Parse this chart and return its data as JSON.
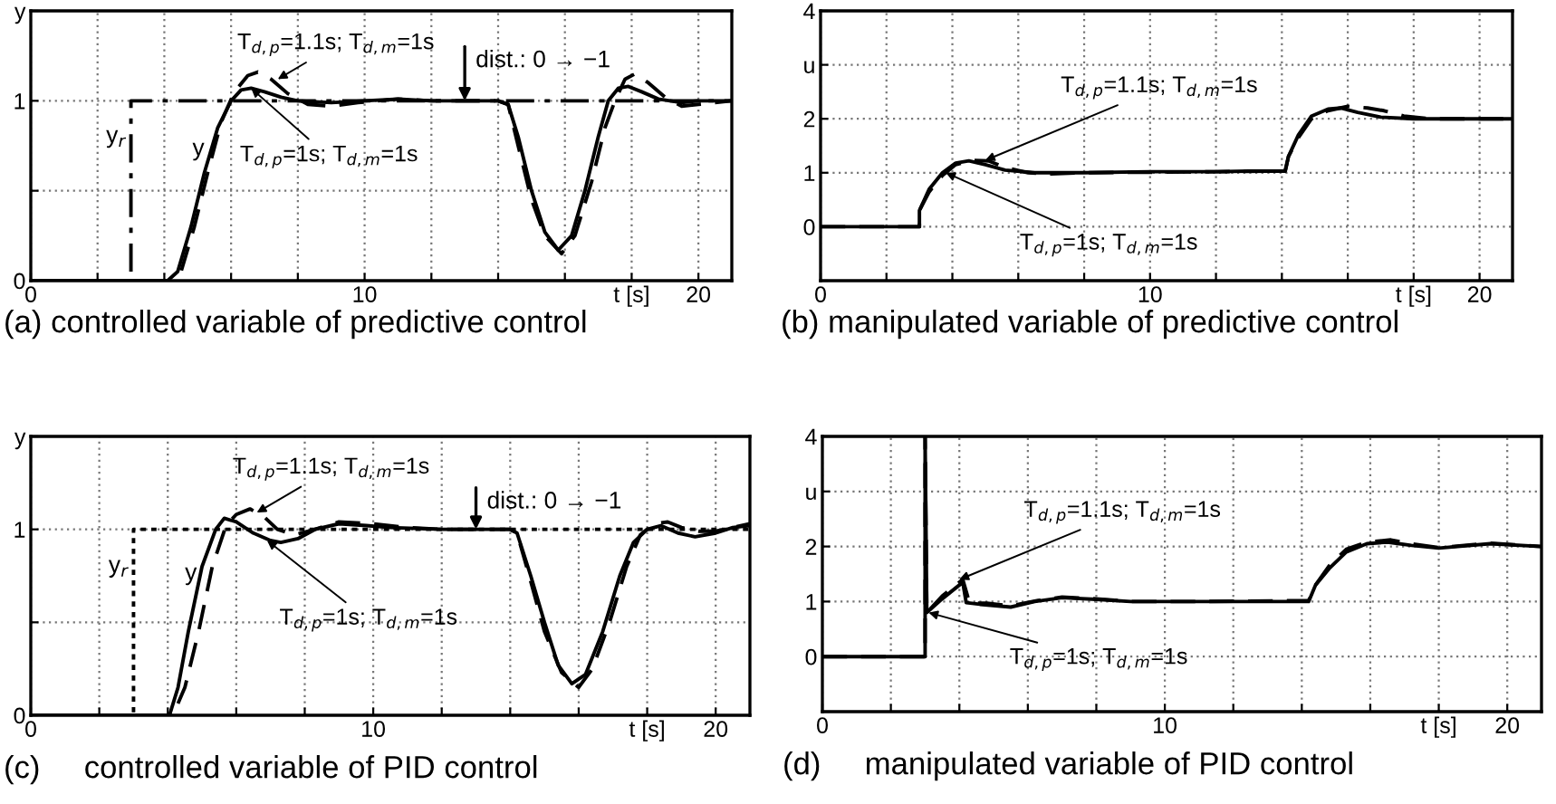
{
  "chart_data": [
    {
      "type": "line",
      "title": "(a) controlled variable of predictive control",
      "xlim": [
        0,
        21
      ],
      "ylim": [
        0,
        1.5
      ],
      "grid": true,
      "xticks": [
        0,
        {
          "value": 2,
          "label": null
        },
        {
          "value": 4,
          "label": null
        },
        {
          "value": 6,
          "label": null
        },
        {
          "value": 8,
          "label": null
        },
        10,
        {
          "value": 12,
          "label": null
        },
        {
          "value": 14,
          "label": null
        },
        {
          "value": 16,
          "label": null
        },
        {
          "value": 18,
          "label": "t [s]"
        },
        20
      ],
      "yticks": [
        0,
        {
          "value": 0.5,
          "label": null
        },
        1,
        {
          "value": 1.5,
          "label": "y"
        }
      ],
      "series": [
        {
          "color": "#000000",
          "line_style": "dashdot",
          "x": [
            0,
            3,
            3,
            21
          ],
          "values": [
            0,
            0,
            1,
            1
          ]
        },
        {
          "color": "#000000",
          "line_style": "solid",
          "x": [
            0,
            4.1,
            4.4,
            4.8,
            5.2,
            5.6,
            6.0,
            6.3,
            6.6,
            7.0,
            7.5,
            8,
            9,
            10,
            11,
            12,
            13,
            14,
            14.3,
            14.6,
            15.0,
            15.4,
            15.8,
            16.2,
            16.6,
            17.0,
            17.3,
            17.6,
            17.9,
            18.3,
            18.8,
            19.5,
            20,
            21
          ],
          "values": [
            0,
            0,
            0.05,
            0.3,
            0.6,
            0.85,
            1.0,
            1.06,
            1.07,
            1.05,
            1.02,
            1.0,
            0.99,
            1.0,
            1.01,
            1.0,
            1.0,
            1.0,
            0.98,
            0.8,
            0.5,
            0.27,
            0.17,
            0.25,
            0.5,
            0.8,
            1.0,
            1.07,
            1.08,
            1.05,
            1.01,
            0.99,
            1.0,
            1.0
          ]
        },
        {
          "color": "#000000",
          "line_style": "dashed",
          "x": [
            0,
            4.2,
            4.5,
            4.9,
            5.3,
            5.7,
            6.1,
            6.5,
            6.8,
            7.2,
            7.7,
            8.3,
            9,
            9.8,
            11,
            12,
            14,
            14.3,
            14.6,
            15.0,
            15.4,
            15.9,
            16.3,
            16.8,
            17.2,
            17.5,
            17.8,
            18.1,
            18.5,
            19.0,
            19.5,
            20,
            21
          ],
          "values": [
            0,
            0,
            0.05,
            0.3,
            0.6,
            0.88,
            1.05,
            1.14,
            1.16,
            1.12,
            1.04,
            0.98,
            0.97,
            0.99,
            1.01,
            1.0,
            1.0,
            0.98,
            0.75,
            0.45,
            0.25,
            0.15,
            0.25,
            0.55,
            0.85,
            1.0,
            1.12,
            1.15,
            1.1,
            1.02,
            0.97,
            0.98,
            1.0
          ]
        }
      ],
      "annotations": [
        {
          "text": "T$_{d,p}$=1.1s; T$_{d,m}$=1s",
          "x": 7.4,
          "y": 1.12
        },
        {
          "text": "T$_{d,p}$=1s; T$_{d,m}$=1s",
          "x": 6.6,
          "y": 1.07
        },
        {
          "text": "dist.: 0 → −1",
          "x": 13,
          "y": 1.0
        },
        {
          "text": "y$_{r}$",
          "x": 2.85,
          "y": 0.8
        },
        {
          "text": "y",
          "x": 5.2,
          "y": 0.73
        }
      ]
    },
    {
      "type": "line",
      "title": "(b) manipulated variable of predictive control",
      "xlim": [
        0,
        21
      ],
      "ylim": [
        -1,
        4
      ],
      "grid": true,
      "xticks": [
        0,
        {
          "value": 2,
          "label": null
        },
        {
          "value": 4,
          "label": null
        },
        {
          "value": 6,
          "label": null
        },
        {
          "value": 8,
          "label": null
        },
        10,
        {
          "value": 12,
          "label": null
        },
        {
          "value": 14,
          "label": null
        },
        {
          "value": 16,
          "label": null
        },
        {
          "value": 18,
          "label": "t [s]"
        },
        20
      ],
      "yticks": [
        {
          "value": -1,
          "label": null
        },
        0,
        1,
        2,
        {
          "value": 3,
          "label": "u"
        },
        4
      ],
      "series": [
        {
          "color": "#000000",
          "line_style": "solid",
          "x": [
            0,
            3,
            3,
            3.3,
            3.7,
            4.1,
            4.5,
            5,
            5.6,
            6.5,
            8,
            10,
            12,
            13,
            14.1,
            14.2,
            14.5,
            14.9,
            15.4,
            15.8,
            16.3,
            17,
            18,
            19,
            21
          ],
          "values": [
            0,
            0,
            0.3,
            0.7,
            1.0,
            1.18,
            1.22,
            1.15,
            1.05,
            1.0,
            1.0,
            1.02,
            1.02,
            1.03,
            1.03,
            1.3,
            1.7,
            2.05,
            2.18,
            2.2,
            2.12,
            2.03,
            2.0,
            2.0,
            2.0
          ]
        },
        {
          "color": "#000000",
          "line_style": "dashed",
          "x": [
            0,
            3,
            3,
            3.3,
            3.7,
            4.1,
            4.6,
            5.1,
            5.6,
            6.3,
            7,
            8,
            10,
            12,
            14.1,
            14.2,
            14.5,
            14.9,
            15.4,
            16,
            16.6,
            17.1,
            17.7,
            18.5,
            21
          ],
          "values": [
            0,
            0,
            0.3,
            0.65,
            0.95,
            1.15,
            1.23,
            1.22,
            1.1,
            1.0,
            0.98,
            1.0,
            1.01,
            1.02,
            1.03,
            1.3,
            1.65,
            2.0,
            2.15,
            2.23,
            2.2,
            2.15,
            2.05,
            2.0,
            2.0
          ]
        }
      ],
      "annotations": [
        {
          "text": "T$_{d,p}$=1.1s; T$_{d,m}$=1s",
          "x": 5.0,
          "y": 1.23
        },
        {
          "text": "T$_{d,p}$=1s; T$_{d,m}$=1s",
          "x": 3.8,
          "y": 1.0
        }
      ]
    },
    {
      "type": "line",
      "title": "(c)     controlled variable of PID control",
      "xlim": [
        0,
        21
      ],
      "ylim": [
        0,
        1.5
      ],
      "grid": true,
      "xticks": [
        0,
        {
          "value": 2,
          "label": null
        },
        {
          "value": 4,
          "label": null
        },
        {
          "value": 6,
          "label": null
        },
        {
          "value": 8,
          "label": null
        },
        10,
        {
          "value": 12,
          "label": null
        },
        {
          "value": 14,
          "label": null
        },
        {
          "value": 16,
          "label": null
        },
        {
          "value": 18,
          "label": "t [s]"
        },
        20
      ],
      "yticks": [
        0,
        {
          "value": 0.5,
          "label": null
        },
        1,
        {
          "value": 1.5,
          "label": "y"
        }
      ],
      "series": [
        {
          "color": "#000000",
          "line_style": "dotted",
          "x": [
            0,
            3,
            3,
            21
          ],
          "values": [
            0,
            0,
            1,
            1
          ]
        },
        {
          "color": "#000000",
          "line_style": "solid",
          "x": [
            0,
            4.05,
            4.3,
            4.6,
            5.0,
            5.4,
            5.65,
            6.0,
            6.5,
            7.0,
            7.3,
            7.8,
            8.3,
            9,
            9.8,
            10.5,
            12,
            14,
            14.2,
            14.6,
            15.0,
            15.4,
            15.8,
            16.2,
            16.7,
            17.2,
            17.6,
            18.0,
            18.4,
            18.9,
            19.4,
            20,
            20.5,
            21
          ],
          "values": [
            0,
            0,
            0.15,
            0.45,
            0.8,
            1.0,
            1.06,
            1.04,
            0.98,
            0.94,
            0.93,
            0.95,
            1.0,
            1.03,
            1.02,
            1.01,
            1.0,
            1.0,
            0.98,
            0.75,
            0.5,
            0.27,
            0.17,
            0.22,
            0.45,
            0.75,
            0.93,
            1.0,
            1.02,
            0.98,
            0.96,
            0.98,
            1.01,
            1.02
          ]
        },
        {
          "color": "#000000",
          "line_style": "dashed",
          "x": [
            0,
            4.15,
            4.5,
            4.9,
            5.3,
            5.7,
            6.0,
            6.4,
            6.8,
            7.2,
            7.7,
            8.3,
            9,
            10,
            11,
            12,
            14,
            14.2,
            14.6,
            15.0,
            15.5,
            16.0,
            16.4,
            16.9,
            17.4,
            17.8,
            18.2,
            18.6,
            19.0,
            19.5,
            20,
            20.5,
            21
          ],
          "values": [
            0,
            0,
            0.15,
            0.45,
            0.8,
            1.02,
            1.08,
            1.11,
            1.07,
            1.0,
            0.97,
            1.0,
            1.04,
            1.03,
            1.01,
            1.0,
            1.0,
            0.98,
            0.72,
            0.45,
            0.23,
            0.15,
            0.25,
            0.5,
            0.8,
            0.97,
            1.03,
            1.04,
            1.01,
            0.99,
            0.99,
            1.01,
            1.03
          ]
        }
      ],
      "annotations": [
        {
          "text": "T$_{d,p}$=1.1s; T$_{d,m}$=1s",
          "x": 6.6,
          "y": 1.09
        },
        {
          "text": "T$_{d,p}$=1s; T$_{d,m}$=1s",
          "x": 6.9,
          "y": 0.94
        },
        {
          "text": "dist.: 0 → −1",
          "x": 13,
          "y": 1.0
        },
        {
          "text": "y$_{r}$",
          "x": 2.85,
          "y": 0.8
        },
        {
          "text": "y",
          "x": 4.85,
          "y": 0.76
        }
      ]
    },
    {
      "type": "line",
      "title": "(d)     manipulated variable of PID control",
      "xlim": [
        0,
        21
      ],
      "ylim": [
        -1,
        4
      ],
      "grid": true,
      "xticks": [
        0,
        {
          "value": 2,
          "label": null
        },
        {
          "value": 4,
          "label": null
        },
        {
          "value": 6,
          "label": null
        },
        {
          "value": 8,
          "label": null
        },
        10,
        {
          "value": 12,
          "label": null
        },
        {
          "value": 14,
          "label": null
        },
        {
          "value": 16,
          "label": null
        },
        {
          "value": 18,
          "label": "t [s]"
        },
        20
      ],
      "yticks": [
        {
          "value": -1,
          "label": null
        },
        0,
        1,
        2,
        {
          "value": 3,
          "label": "u"
        },
        4
      ],
      "series": [
        {
          "color": "#000000",
          "line_style": "solid",
          "x": [
            0,
            3,
            3,
            3.05,
            3.5,
            4.1,
            4.2,
            4.6,
            5.5,
            6.2,
            7,
            8,
            9,
            11,
            14.2,
            14.4,
            14.8,
            15.3,
            15.9,
            16.5,
            17.2,
            18,
            19.5,
            21
          ],
          "values": [
            0,
            0,
            4,
            0.8,
            1.05,
            1.35,
            0.98,
            0.95,
            0.9,
            1.0,
            1.07,
            1.04,
            1.0,
            1.0,
            1.0,
            1.3,
            1.6,
            1.9,
            2.05,
            2.08,
            2.02,
            1.97,
            2.05,
            2.0
          ]
        },
        {
          "color": "#000000",
          "line_style": "dashed",
          "x": [
            0,
            3,
            3,
            3.05,
            3.5,
            4.1,
            4.3,
            4.8,
            5.5,
            6.3,
            7,
            8,
            9,
            11,
            14.2,
            14.4,
            14.8,
            15.3,
            15.9,
            16.6,
            17.2,
            18,
            19.5,
            21
          ],
          "values": [
            0,
            0,
            4,
            0.8,
            1.1,
            1.4,
            0.97,
            0.97,
            0.92,
            1.02,
            1.08,
            1.05,
            1.0,
            1.0,
            1.02,
            1.3,
            1.65,
            1.95,
            2.08,
            2.12,
            2.05,
            1.98,
            2.06,
            2.0
          ]
        }
      ],
      "annotations": [
        {
          "text": "T$_{d,p}$=1.1s; T$_{d,m}$=1s",
          "x": 4.0,
          "y": 1.4
        },
        {
          "text": "T$_{d,p}$=1s; T$_{d,m}$=1s",
          "x": 3.1,
          "y": 0.8
        }
      ]
    }
  ]
}
